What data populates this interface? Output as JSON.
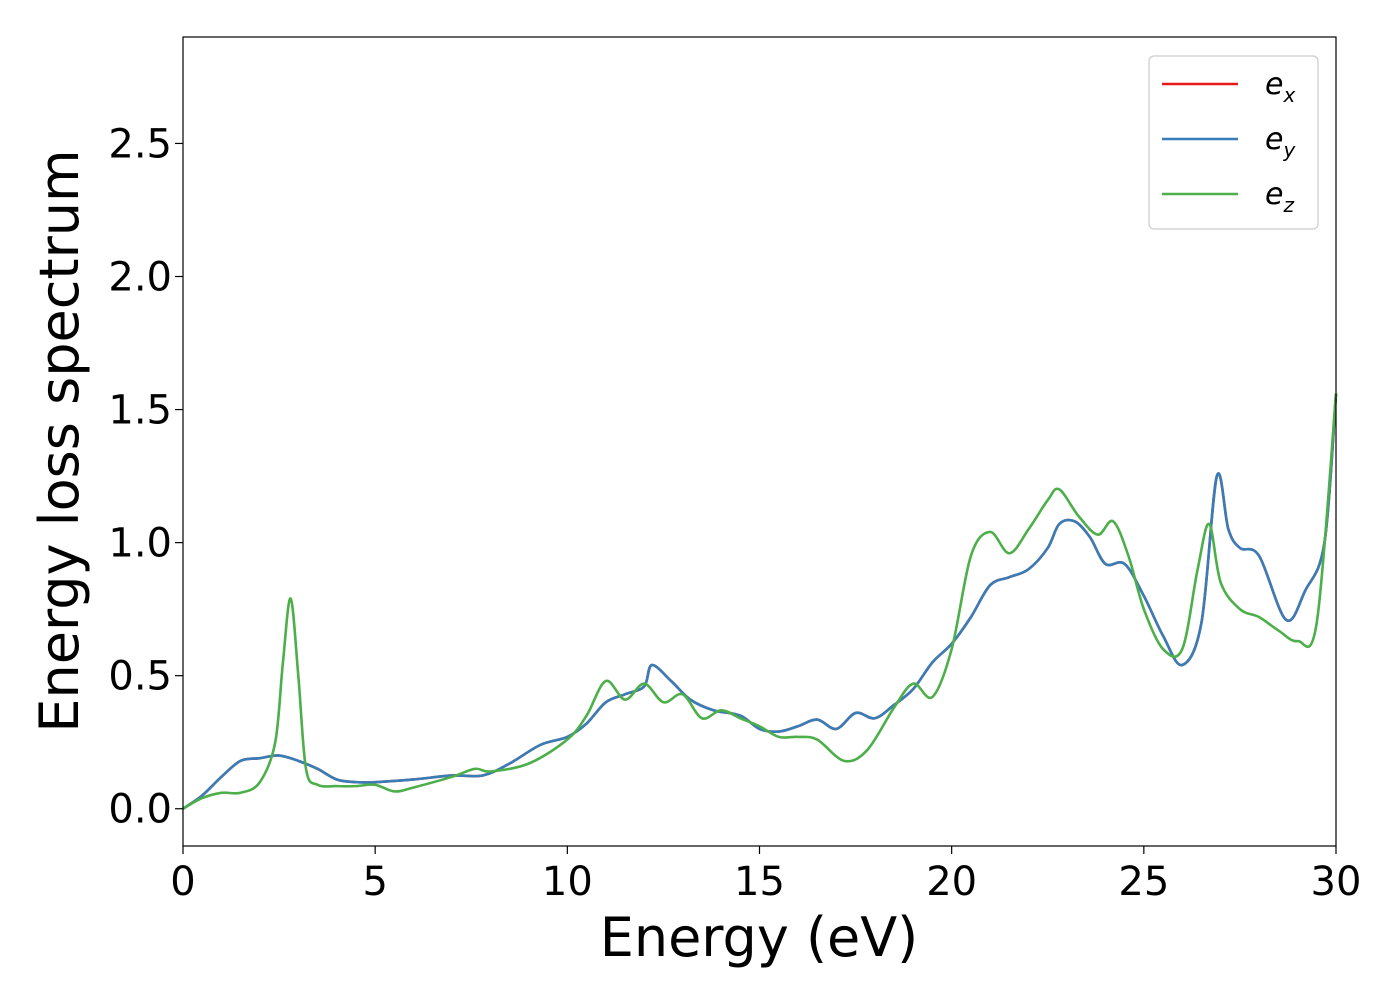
{
  "chart_data": {
    "type": "line",
    "xlabel": "Energy (eV)",
    "ylabel": "Energy loss spectrum",
    "xlim": [
      0,
      30
    ],
    "ylim": [
      -0.14,
      2.9
    ],
    "xticks": [
      "0",
      "5",
      "10",
      "15",
      "20",
      "25",
      "30"
    ],
    "yticks": [
      "0.0",
      "0.5",
      "1.0",
      "1.5",
      "2.0",
      "2.5"
    ],
    "grid": false,
    "legend_position": "top-right",
    "series": [
      {
        "name": "e",
        "subscript": "x",
        "color": "#e41a1c",
        "x": [
          0,
          0.5,
          1,
          1.5,
          2,
          2.5,
          3,
          3.5,
          4,
          4.5,
          5,
          6,
          7,
          7.8,
          8.5,
          9.3,
          10,
          10.5,
          11,
          11.5,
          12,
          12.2,
          12.7,
          13.2,
          13.8,
          14.5,
          15,
          15.5,
          16,
          16.5,
          17,
          17.5,
          18,
          18.5,
          19,
          19.5,
          20,
          20.5,
          21,
          21.5,
          22,
          22.5,
          22.8,
          23.2,
          23.6,
          24,
          24.5,
          25,
          25.5,
          26,
          26.5,
          26.9,
          27.2,
          27.5,
          28,
          28.7,
          29.2,
          29.7,
          30
        ],
        "y": [
          0.0,
          0.05,
          0.12,
          0.18,
          0.19,
          0.2,
          0.18,
          0.15,
          0.11,
          0.1,
          0.1,
          0.11,
          0.125,
          0.125,
          0.17,
          0.24,
          0.27,
          0.32,
          0.4,
          0.43,
          0.46,
          0.54,
          0.48,
          0.41,
          0.37,
          0.35,
          0.3,
          0.29,
          0.31,
          0.335,
          0.3,
          0.36,
          0.34,
          0.39,
          0.45,
          0.55,
          0.62,
          0.72,
          0.84,
          0.87,
          0.9,
          0.98,
          1.07,
          1.08,
          1.02,
          0.92,
          0.92,
          0.8,
          0.65,
          0.54,
          0.7,
          1.25,
          1.05,
          0.98,
          0.95,
          0.71,
          0.82,
          1.0,
          1.56
        ]
      },
      {
        "name": "e",
        "subscript": "y",
        "color": "#377eb8",
        "x": [
          0,
          0.5,
          1,
          1.5,
          2,
          2.5,
          3,
          3.5,
          4,
          4.5,
          5,
          6,
          7,
          7.8,
          8.5,
          9.3,
          10,
          10.5,
          11,
          11.5,
          12,
          12.2,
          12.7,
          13.2,
          13.8,
          14.5,
          15,
          15.5,
          16,
          16.5,
          17,
          17.5,
          18,
          18.5,
          19,
          19.5,
          20,
          20.5,
          21,
          21.5,
          22,
          22.5,
          22.8,
          23.2,
          23.6,
          24,
          24.5,
          25,
          25.5,
          26,
          26.5,
          26.9,
          27.2,
          27.5,
          28,
          28.7,
          29.2,
          29.7,
          30
        ],
        "y": [
          0.0,
          0.05,
          0.12,
          0.18,
          0.19,
          0.2,
          0.18,
          0.15,
          0.11,
          0.1,
          0.1,
          0.11,
          0.125,
          0.125,
          0.17,
          0.24,
          0.27,
          0.32,
          0.4,
          0.43,
          0.46,
          0.54,
          0.48,
          0.41,
          0.37,
          0.35,
          0.3,
          0.29,
          0.31,
          0.335,
          0.3,
          0.36,
          0.34,
          0.39,
          0.45,
          0.55,
          0.62,
          0.72,
          0.84,
          0.87,
          0.9,
          0.98,
          1.07,
          1.08,
          1.02,
          0.92,
          0.92,
          0.8,
          0.65,
          0.54,
          0.7,
          1.25,
          1.05,
          0.98,
          0.95,
          0.71,
          0.82,
          1.0,
          1.56
        ]
      },
      {
        "name": "e",
        "subscript": "z",
        "color": "#4daf4a",
        "x": [
          0,
          0.5,
          1,
          1.5,
          2,
          2.4,
          2.6,
          2.8,
          3.0,
          3.2,
          3.5,
          4,
          4.5,
          5,
          5.5,
          6,
          7,
          7.6,
          8,
          9,
          10,
          10.5,
          11,
          11.5,
          12,
          12.5,
          13,
          13.5,
          14,
          14.5,
          15,
          15.5,
          16,
          16.5,
          17.2,
          17.8,
          18.5,
          19,
          19.5,
          20,
          20.5,
          21,
          21.5,
          22,
          22.5,
          22.8,
          23.3,
          23.8,
          24.2,
          24.6,
          25,
          25.5,
          26,
          26.4,
          26.7,
          27,
          27.5,
          28,
          28.5,
          29,
          29.5,
          30
        ],
        "y": [
          0.0,
          0.04,
          0.06,
          0.06,
          0.1,
          0.25,
          0.55,
          0.79,
          0.5,
          0.15,
          0.09,
          0.085,
          0.085,
          0.09,
          0.065,
          0.08,
          0.12,
          0.15,
          0.14,
          0.17,
          0.26,
          0.35,
          0.48,
          0.41,
          0.47,
          0.4,
          0.43,
          0.34,
          0.37,
          0.34,
          0.31,
          0.27,
          0.27,
          0.26,
          0.18,
          0.22,
          0.38,
          0.47,
          0.42,
          0.6,
          0.95,
          1.04,
          0.96,
          1.05,
          1.16,
          1.2,
          1.1,
          1.03,
          1.08,
          0.95,
          0.75,
          0.6,
          0.6,
          0.9,
          1.07,
          0.85,
          0.75,
          0.72,
          0.67,
          0.63,
          0.7,
          1.56
        ]
      }
    ]
  }
}
